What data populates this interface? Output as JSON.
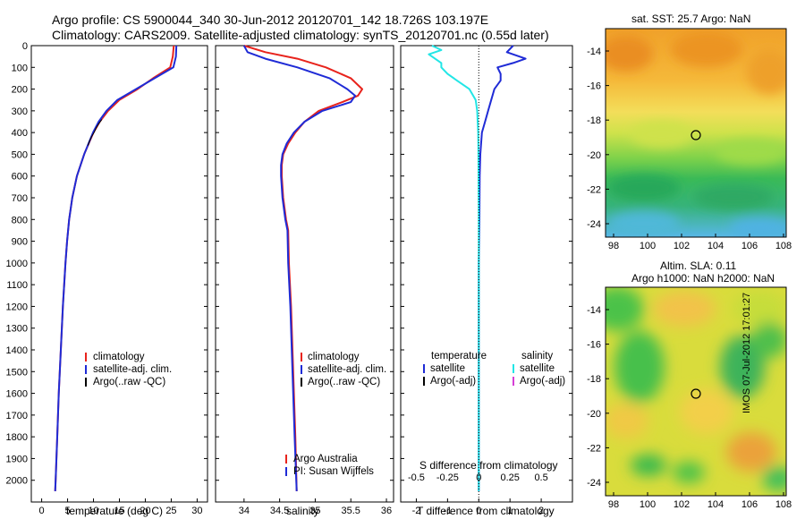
{
  "header": {
    "title_line1": "Argo profile: CS 5900044_340 30-Jun-2012 20120701_142 18.726S 103.197E",
    "title_line2": "Climatology: CARS2009. Satellite-adjusted climatology: synTS_20120701.nc (0.55d later)"
  },
  "colors": {
    "climatology": "#e8231c",
    "satellite": "#1f2bd6",
    "argo": "#000000",
    "sat_salinity": "#22e6e6",
    "argo_adj_salinity": "#d63fd6"
  },
  "chart_data": [
    {
      "type": "line",
      "title": "",
      "xlabel": "temperature (deg C)",
      "ylabel": "",
      "xlim": [
        -2,
        32
      ],
      "ylim": [
        2100,
        0
      ],
      "xticks": [
        0,
        5,
        10,
        15,
        20,
        25,
        30
      ],
      "yticks": [
        0,
        100,
        200,
        300,
        400,
        500,
        600,
        700,
        800,
        900,
        1000,
        1100,
        1200,
        1300,
        1400,
        1500,
        1600,
        1700,
        1800,
        1900,
        2000
      ],
      "series": [
        {
          "name": "climatology",
          "color": "#e8231c",
          "depth": [
            0,
            50,
            100,
            150,
            200,
            250,
            300,
            350,
            400,
            500,
            600,
            700,
            800,
            900,
            1000,
            1200,
            1400,
            1600,
            1800,
            2000,
            2050
          ],
          "values": [
            25.5,
            25.3,
            24.8,
            21.5,
            18.5,
            15.0,
            12.8,
            11.2,
            10.0,
            8.2,
            6.8,
            5.9,
            5.3,
            4.9,
            4.6,
            4.1,
            3.7,
            3.3,
            3.0,
            2.7,
            2.6
          ]
        },
        {
          "name": "satellite-adj. clim.",
          "color": "#1f2bd6",
          "depth": [
            0,
            50,
            100,
            150,
            200,
            250,
            300,
            350,
            400,
            500,
            600,
            700,
            800,
            900,
            1000,
            1200,
            1400,
            1600,
            1800,
            2000,
            2050
          ],
          "values": [
            26.0,
            25.9,
            25.4,
            21.8,
            18.2,
            14.6,
            12.5,
            11.0,
            9.9,
            8.2,
            6.8,
            5.9,
            5.3,
            4.9,
            4.6,
            4.1,
            3.7,
            3.3,
            3.0,
            2.7,
            2.6
          ]
        },
        {
          "name": "Argo(..raw -QC)",
          "color": "#000000",
          "depth": [
            340,
            360,
            380,
            400,
            420,
            440,
            460
          ],
          "values": [
            11.6,
            11.0,
            10.5,
            10.1,
            9.6,
            9.2,
            8.9
          ]
        }
      ],
      "legend": [
        "climatology",
        "satellite-adj. clim.",
        "Argo(..raw -QC)"
      ]
    },
    {
      "type": "line",
      "xlabel": "salinity",
      "xlim": [
        33.6,
        36.1
      ],
      "ylim": [
        2100,
        0
      ],
      "xticks": [
        34,
        34.5,
        35,
        35.5,
        36
      ],
      "xticklabels": [
        "34",
        "34.5",
        "35",
        "35.5",
        "36"
      ],
      "series": [
        {
          "name": "climatology",
          "color": "#e8231c",
          "depth": [
            0,
            30,
            60,
            100,
            150,
            200,
            230,
            260,
            300,
            350,
            400,
            450,
            500,
            550,
            600,
            700,
            800,
            850,
            1000,
            1200,
            1500,
            1800,
            2050
          ],
          "values": [
            34.0,
            34.3,
            34.75,
            35.15,
            35.5,
            35.66,
            35.6,
            35.38,
            35.05,
            34.85,
            34.72,
            34.62,
            34.55,
            34.53,
            34.53,
            34.55,
            34.59,
            34.62,
            34.63,
            34.66,
            34.69,
            34.72,
            34.74
          ]
        },
        {
          "name": "satellite-adj. clim.",
          "color": "#1f2bd6",
          "depth": [
            0,
            30,
            60,
            100,
            150,
            200,
            230,
            260,
            300,
            350,
            400,
            450,
            500,
            550,
            600,
            700,
            800,
            850,
            1000,
            1200,
            1500,
            1800,
            2050
          ],
          "values": [
            34.0,
            34.05,
            34.3,
            34.75,
            35.2,
            35.45,
            35.56,
            35.5,
            35.1,
            34.85,
            34.7,
            34.6,
            34.54,
            34.52,
            34.52,
            34.54,
            34.58,
            34.61,
            34.62,
            34.65,
            34.68,
            34.71,
            34.74
          ]
        }
      ],
      "legend": [
        "climatology",
        "satellite-adj. clim.",
        "Argo(..raw -QC)"
      ],
      "annotations": [
        "Argo Australia",
        "PI: Susan Wijffels"
      ]
    },
    {
      "type": "line",
      "xlabel": "T difference from climatology",
      "xlabel_top": "S difference from climatology",
      "xlim": [
        -2.5,
        3
      ],
      "ylim": [
        2100,
        0
      ],
      "xticks": [
        -2,
        -1,
        0,
        1,
        2
      ],
      "xticks_top_labels": [
        "-0.5",
        "-0.25",
        "0",
        "0.25",
        "0.5"
      ],
      "series": [
        {
          "name": "temperature satellite",
          "color": "#1f2bd6",
          "depth": [
            0,
            30,
            60,
            80,
            100,
            130,
            160,
            200,
            250,
            300,
            350,
            400,
            500,
            600,
            800,
            1000,
            1200,
            1500,
            2050
          ],
          "values": [
            1.1,
            0.9,
            1.5,
            1.1,
            0.6,
            0.7,
            0.7,
            0.5,
            0.4,
            0.3,
            0.2,
            0.1,
            0.05,
            0.03,
            0.02,
            0.0,
            0.0,
            0.0,
            0.0
          ]
        },
        {
          "name": "salinity satellite",
          "color": "#22e6e6",
          "depth": [
            0,
            20,
            40,
            60,
            80,
            100,
            130,
            160,
            200,
            250,
            300,
            400,
            500,
            800,
            1200,
            1600,
            2050
          ],
          "values": [
            -1.5,
            -1.2,
            -1.6,
            -1.4,
            -1.2,
            -1.2,
            -1.0,
            -0.7,
            -0.3,
            -0.1,
            -0.05,
            -0.02,
            -0.01,
            0.0,
            0.0,
            0.0,
            0.0
          ]
        }
      ],
      "legend": {
        "temperature_title": "temperature",
        "salinity_title": "salinity",
        "items": [
          "satellite",
          "Argo(-adj)",
          "satellite",
          "Argo(-adj)"
        ]
      }
    }
  ],
  "maps": {
    "sst": {
      "title": "sat. SST: 25.7 Argo: NaN",
      "yticks": [
        "-14",
        "-16",
        "-18",
        "-20",
        "-22",
        "-24"
      ],
      "xticks": [
        "98",
        "100",
        "102",
        "104",
        "106",
        "108"
      ]
    },
    "sla": {
      "title_line1": "Altim. SLA: 0.11",
      "title_line2": "Argo h1000: NaN h2000: NaN",
      "yticks": [
        "-14",
        "-16",
        "-18",
        "-20",
        "-22",
        "-24"
      ],
      "xticks": [
        "98",
        "100",
        "102",
        "104",
        "106",
        "108"
      ]
    },
    "watermark": "IMOS 07-Jul-2012 17:01:27"
  }
}
